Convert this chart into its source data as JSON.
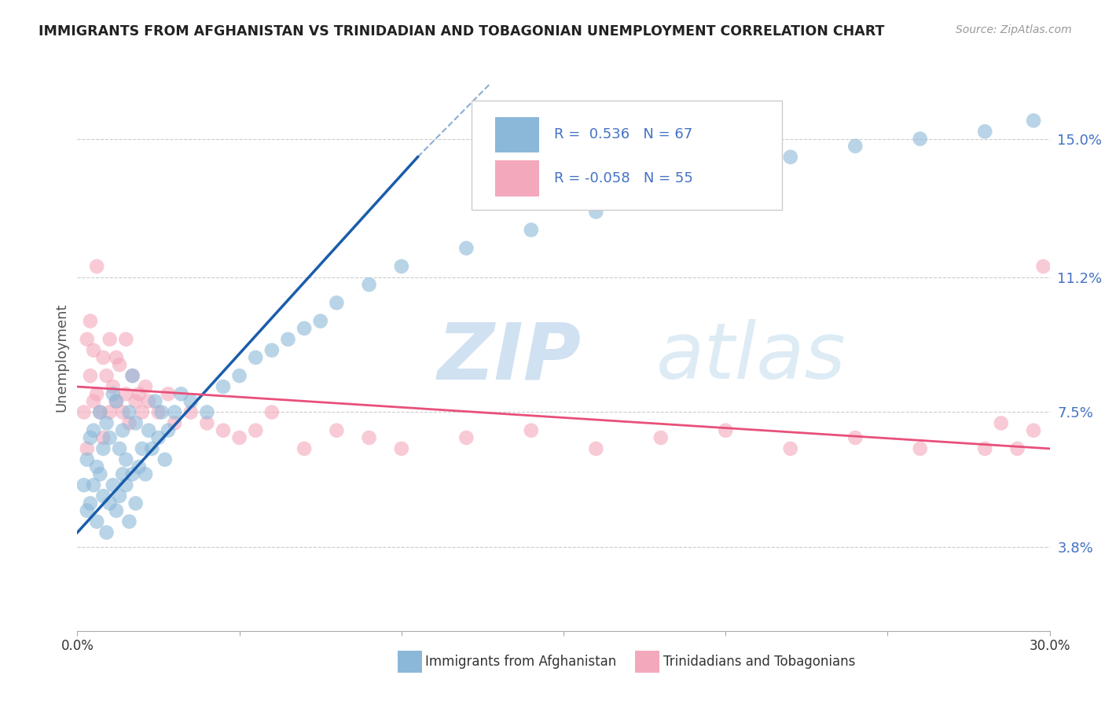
{
  "title": "IMMIGRANTS FROM AFGHANISTAN VS TRINIDADIAN AND TOBAGONIAN UNEMPLOYMENT CORRELATION CHART",
  "source": "Source: ZipAtlas.com",
  "ylabel": "Unemployment",
  "yticks": [
    3.8,
    7.5,
    11.2,
    15.0
  ],
  "ytick_labels": [
    "3.8%",
    "7.5%",
    "11.2%",
    "15.0%"
  ],
  "xmin": 0.0,
  "xmax": 30.0,
  "ymin": 1.5,
  "ymax": 16.5,
  "color_afghanistan": "#8BB8D8",
  "color_trinidad": "#F4A8BC",
  "color_line_afghanistan": "#1A5DAB",
  "color_line_trinidad": "#E8507A",
  "R_afghanistan": 0.536,
  "N_afghanistan": 67,
  "R_trinidad": -0.058,
  "N_trinidad": 55,
  "legend_label_afghanistan": "Immigrants from Afghanistan",
  "legend_label_trinidad": "Trinidadians and Tobagonians",
  "watermark_zip": "ZIP",
  "watermark_atlas": "atlas",
  "afghanistan_x": [
    0.2,
    0.3,
    0.3,
    0.4,
    0.4,
    0.5,
    0.5,
    0.6,
    0.6,
    0.7,
    0.7,
    0.8,
    0.8,
    0.9,
    0.9,
    1.0,
    1.0,
    1.1,
    1.1,
    1.2,
    1.2,
    1.3,
    1.3,
    1.4,
    1.4,
    1.5,
    1.5,
    1.6,
    1.6,
    1.7,
    1.7,
    1.8,
    1.8,
    1.9,
    2.0,
    2.1,
    2.2,
    2.3,
    2.4,
    2.5,
    2.6,
    2.7,
    2.8,
    3.0,
    3.2,
    3.5,
    4.0,
    4.5,
    5.0,
    5.5,
    6.0,
    6.5,
    7.0,
    7.5,
    8.0,
    9.0,
    10.0,
    12.0,
    14.0,
    16.0,
    18.0,
    20.0,
    22.0,
    24.0,
    26.0,
    28.0,
    29.5
  ],
  "afghanistan_y": [
    5.5,
    6.2,
    4.8,
    6.8,
    5.0,
    5.5,
    7.0,
    4.5,
    6.0,
    5.8,
    7.5,
    5.2,
    6.5,
    4.2,
    7.2,
    5.0,
    6.8,
    5.5,
    8.0,
    4.8,
    7.8,
    5.2,
    6.5,
    5.8,
    7.0,
    5.5,
    6.2,
    4.5,
    7.5,
    5.8,
    8.5,
    5.0,
    7.2,
    6.0,
    6.5,
    5.8,
    7.0,
    6.5,
    7.8,
    6.8,
    7.5,
    6.2,
    7.0,
    7.5,
    8.0,
    7.8,
    7.5,
    8.2,
    8.5,
    9.0,
    9.2,
    9.5,
    9.8,
    10.0,
    10.5,
    11.0,
    11.5,
    12.0,
    12.5,
    13.0,
    13.5,
    14.0,
    14.5,
    14.8,
    15.0,
    15.2,
    15.5
  ],
  "trinidad_x": [
    0.2,
    0.3,
    0.3,
    0.4,
    0.4,
    0.5,
    0.5,
    0.6,
    0.6,
    0.7,
    0.8,
    0.8,
    0.9,
    1.0,
    1.0,
    1.1,
    1.2,
    1.2,
    1.3,
    1.4,
    1.5,
    1.5,
    1.6,
    1.7,
    1.8,
    1.9,
    2.0,
    2.1,
    2.2,
    2.5,
    2.8,
    3.0,
    3.5,
    4.0,
    4.5,
    5.0,
    5.5,
    6.0,
    7.0,
    8.0,
    9.0,
    10.0,
    12.0,
    14.0,
    16.0,
    18.0,
    20.0,
    22.0,
    24.0,
    26.0,
    28.0,
    28.5,
    29.0,
    29.5,
    29.8
  ],
  "trinidad_y": [
    7.5,
    9.5,
    6.5,
    8.5,
    10.0,
    7.8,
    9.2,
    8.0,
    11.5,
    7.5,
    9.0,
    6.8,
    8.5,
    7.5,
    9.5,
    8.2,
    7.8,
    9.0,
    8.8,
    7.5,
    8.0,
    9.5,
    7.2,
    8.5,
    7.8,
    8.0,
    7.5,
    8.2,
    7.8,
    7.5,
    8.0,
    7.2,
    7.5,
    7.2,
    7.0,
    6.8,
    7.0,
    7.5,
    6.5,
    7.0,
    6.8,
    6.5,
    6.8,
    7.0,
    6.5,
    6.8,
    7.0,
    6.5,
    6.8,
    6.5,
    6.5,
    7.2,
    6.5,
    7.0,
    11.5
  ],
  "af_line_x_start": 0.0,
  "af_line_x_end": 10.5,
  "af_line_y_start": 4.2,
  "af_line_y_end": 14.5,
  "af_dash_x_start": 10.5,
  "af_dash_x_end": 15.5,
  "af_dash_y_start": 14.5,
  "af_dash_y_end": 19.0,
  "tr_line_x_start": 0.0,
  "tr_line_x_end": 30.0,
  "tr_line_y_start": 8.2,
  "tr_line_y_end": 6.5
}
